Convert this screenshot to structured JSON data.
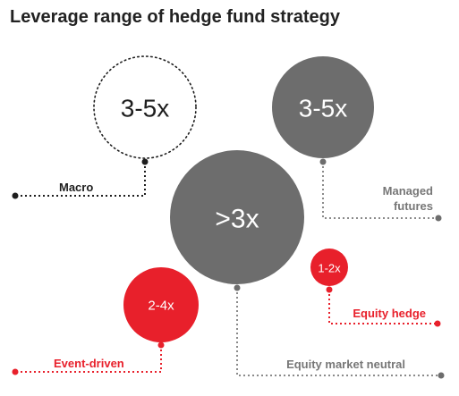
{
  "title": "Leverage range of hedge fund strategy",
  "colors": {
    "black": "#1e1e1e",
    "gray": "#6d6d6d",
    "gray_text": "#777777",
    "red": "#e8202b",
    "title": "#222222"
  },
  "strategies": [
    {
      "name": "Macro",
      "leverage": "3-5x",
      "style": "outlined-dotted"
    },
    {
      "name": "Managed futures",
      "name_lines": [
        "Managed",
        "futures"
      ],
      "leverage": "3-5x",
      "style": "gray-filled"
    },
    {
      "name": "Equity market neutral",
      "leverage": ">3x",
      "style": "gray-filled"
    },
    {
      "name": "Equity hedge",
      "leverage": "1-2x",
      "style": "red-filled"
    },
    {
      "name": "Event-driven",
      "leverage": "2-4x",
      "style": "red-filled"
    }
  ]
}
